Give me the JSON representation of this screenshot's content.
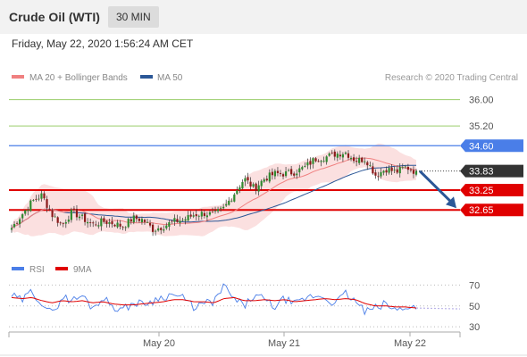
{
  "header": {
    "title": "Crude Oil (WTI)",
    "timeframe": "30 MIN"
  },
  "date_line": "Friday, May 22, 2020 1:56:24 AM CET",
  "chart_data": [
    {
      "type": "candlestick",
      "legend": [
        {
          "label": "MA 20 + Bollinger Bands",
          "color": "#f08080"
        },
        {
          "label": "MA 50",
          "color": "#2b5797"
        }
      ],
      "credit": "Research © 2020 Trading Central",
      "ylim": [
        31.3,
        36.45
      ],
      "x_ticks": [
        "May 20",
        "May 21",
        "May 22"
      ],
      "levels": [
        {
          "value": 36.0,
          "label": "36.00",
          "style": "green-line"
        },
        {
          "value": 35.2,
          "label": "35.20",
          "style": "green-line"
        },
        {
          "value": 34.6,
          "label": "34.60",
          "style": "blue-box",
          "color": "#4a7ee8"
        },
        {
          "value": 33.83,
          "label": "33.83",
          "style": "dark-box",
          "color": "#333333"
        },
        {
          "value": 33.25,
          "label": "33.25",
          "style": "red-box",
          "color": "#e00000"
        },
        {
          "value": 32.65,
          "label": "32.65",
          "style": "red-box",
          "color": "#e00000"
        }
      ],
      "price_path": [
        32.1,
        32.5,
        32.9,
        33.1,
        32.5,
        32.2,
        32.6,
        32.4,
        32.2,
        32.3,
        32.25,
        32.15,
        32.4,
        32.35,
        32.05,
        32.15,
        32.3,
        32.35,
        32.5,
        32.55,
        32.5,
        32.7,
        33.15,
        33.6,
        33.3,
        33.6,
        33.75,
        33.75,
        33.8,
        33.95,
        34.2,
        34.25,
        34.35,
        34.4,
        34.15,
        34.2,
        33.7,
        33.9,
        33.8,
        33.95,
        33.8
      ],
      "forecast": {
        "from": 33.83,
        "to": 32.65,
        "direction": "down"
      }
    },
    {
      "type": "line",
      "legend": [
        {
          "label": "RSI",
          "color": "#4a7ee8"
        },
        {
          "label": "9MA",
          "color": "#e00000"
        }
      ],
      "ylim": [
        25,
        78
      ],
      "y_ticks": [
        70,
        50,
        30
      ],
      "rsi_path": [
        60,
        55,
        64,
        53,
        42,
        59,
        55,
        60,
        48,
        58,
        50,
        46,
        53,
        52,
        55,
        59,
        61,
        57,
        49,
        52,
        54,
        69,
        56,
        50,
        60,
        56,
        49,
        57,
        51,
        57,
        60,
        58,
        52,
        62,
        54,
        44,
        48,
        52,
        45,
        50,
        48
      ],
      "ma_path": [
        58,
        57,
        58,
        55,
        53,
        55,
        54,
        55,
        53,
        54,
        52,
        51,
        51,
        52,
        53,
        54,
        56,
        56,
        54,
        54,
        53,
        57,
        58,
        55,
        55,
        56,
        55,
        56,
        54,
        55,
        56,
        57,
        56,
        57,
        56,
        52,
        50,
        50,
        49,
        49,
        48
      ]
    }
  ]
}
